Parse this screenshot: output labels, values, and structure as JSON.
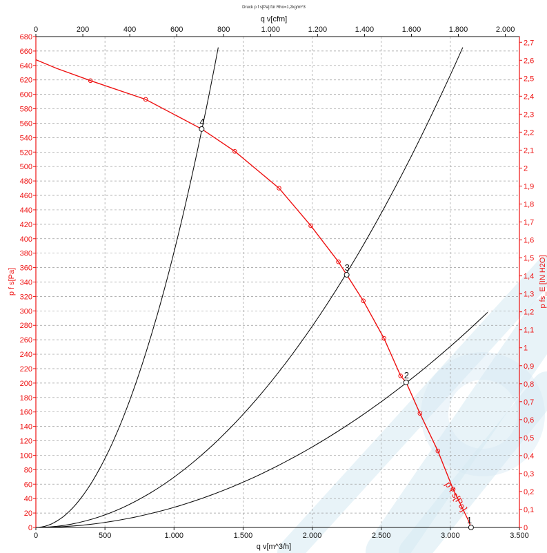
{
  "title": "Druck p f s[Pa] für Rho=1,2kg/m^3",
  "chart_data": {
    "type": "line",
    "title": "Druck p f s[Pa] für Rho=1,2kg/m^3",
    "x_bottom": {
      "label": "q v[m^3/h]",
      "range": [
        0,
        3500
      ],
      "ticks": [
        0,
        500,
        1000,
        1500,
        2000,
        2500,
        3000,
        3500
      ],
      "tick_labels": [
        "0",
        "500",
        "1.000",
        "1.500",
        "2.000",
        "2.500",
        "3.000",
        "3.500"
      ]
    },
    "x_top": {
      "label": "q v[cfm]",
      "range": [
        0,
        2060
      ],
      "ticks": [
        0,
        200,
        400,
        600,
        800,
        1000,
        1200,
        1400,
        1600,
        1800,
        2000
      ],
      "tick_labels": [
        "0",
        "200",
        "400",
        "600",
        "800",
        "1.000",
        "1.200",
        "1.400",
        "1.600",
        "1.800",
        "2.000"
      ]
    },
    "y_left": {
      "label": "p f s[Pa]",
      "range": [
        0,
        680
      ],
      "tick_step": 20
    },
    "y_right": {
      "label": "p fs_E [IN H2O]",
      "range": [
        0,
        2.7317
      ],
      "tick_step": 0.1,
      "tick_labels": [
        "0",
        "0,1",
        "0,2",
        "0,3",
        "0,4",
        "0,5",
        "0,6",
        "0,7",
        "0,8",
        "0,9",
        "1",
        "1,1",
        "1,2",
        "1,3",
        "1,4",
        "1,5",
        "1,6",
        "1,7",
        "1,8",
        "1,9",
        "2",
        "2,1",
        "2,2",
        "2,3",
        "2,4",
        "2,5",
        "2,6",
        "2,7"
      ]
    },
    "grid": true,
    "colors": {
      "curve": "#ee1111",
      "system": "#111111",
      "axis_left": "#ee1111",
      "axis_right": "#ee1111",
      "watermark": "#d6e9f3"
    },
    "series": [
      {
        "name": "p f s[Pa]",
        "color": "#ee1111",
        "x": [
          0,
          150,
          395,
          795,
          1200,
          1440,
          1760,
          1990,
          2190,
          2250,
          2370,
          2520,
          2640,
          2680,
          2780,
          2910,
          3020,
          3130,
          3150
        ],
        "y": [
          648,
          636,
          619,
          593,
          552,
          521,
          470,
          418,
          368,
          350,
          314,
          262,
          210,
          201,
          158,
          106,
          53,
          10,
          0
        ],
        "markers_x": [
          395,
          795,
          1440,
          1760,
          1990,
          2190,
          2370,
          2520,
          2640,
          2780,
          2910,
          3020
        ],
        "markers_y": [
          619,
          593,
          521,
          470,
          418,
          368,
          314,
          262,
          210,
          158,
          106,
          53
        ]
      }
    ],
    "system_curves": [
      {
        "x_end": 1320,
        "y_end": 665
      },
      {
        "x_end": 3090,
        "y_end": 665
      },
      {
        "x_end": 3270,
        "y_end": 298
      }
    ],
    "operating_points": [
      {
        "label": "1",
        "x": 3150,
        "y": 0
      },
      {
        "label": "2",
        "x": 2680,
        "y": 201
      },
      {
        "label": "3",
        "x": 2250,
        "y": 350
      },
      {
        "label": "4",
        "x": 1200,
        "y": 552
      }
    ]
  }
}
